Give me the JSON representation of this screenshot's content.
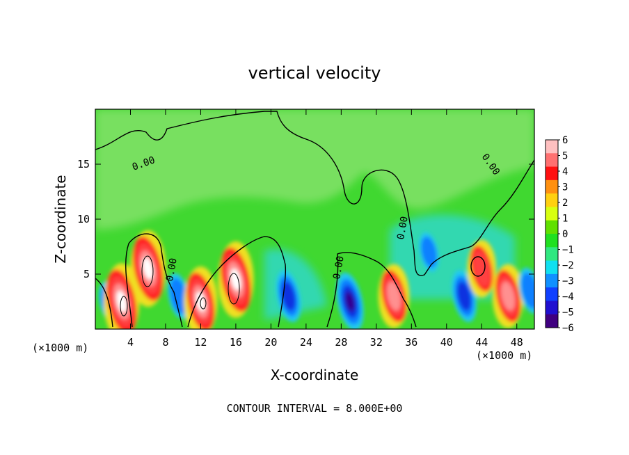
{
  "chart_data": {
    "type": "heatmap",
    "title": "vertical velocity",
    "xlabel": "X-coordinate",
    "ylabel": "Z-coordinate",
    "x_unit": "(×1000 m)",
    "xlim": [
      0,
      50
    ],
    "ylim": [
      0,
      20
    ],
    "x_ticks": [
      "4",
      "8",
      "12",
      "16",
      "20",
      "24",
      "28",
      "32",
      "36",
      "40",
      "44",
      "48"
    ],
    "y_ticks": [
      "5",
      "10",
      "15"
    ],
    "contour_interval_text": "CONTOUR INTERVAL = 8.000E+00",
    "contour_labels": [
      "0.00",
      "0.00",
      "0.00",
      "0.00",
      "0.00"
    ],
    "colorbar": {
      "levels": [
        "6",
        "5",
        "4",
        "3",
        "2",
        "1",
        "0",
        "−1",
        "−2",
        "−3",
        "−4",
        "−5",
        "−6"
      ],
      "colors": [
        "#ffc0c0",
        "#ff7070",
        "#ff1010",
        "#ff9010",
        "#ffd010",
        "#d8ff10",
        "#60e000",
        "#20e020",
        "#30e880",
        "#10e0f0",
        "#1090ff",
        "#1040ff",
        "#2010d0",
        "#400080"
      ]
    },
    "features": [
      {
        "x": 1.5,
        "z": 2.5,
        "w": -2
      },
      {
        "x": 3,
        "z": 2.5,
        "w": 6
      },
      {
        "x": 6,
        "z": 5.5,
        "w": 6
      },
      {
        "x": 9.5,
        "z": 3,
        "w": -3
      },
      {
        "x": 12,
        "z": 2.5,
        "w": 5
      },
      {
        "x": 16,
        "z": 4.5,
        "w": 6
      },
      {
        "x": 22,
        "z": 3,
        "w": -4
      },
      {
        "x": 29,
        "z": 2.5,
        "w": -5
      },
      {
        "x": 34,
        "z": 3,
        "w": 4
      },
      {
        "x": 38,
        "z": 7,
        "w": -2
      },
      {
        "x": 42,
        "z": 3,
        "w": -4
      },
      {
        "x": 44,
        "z": 5.5,
        "w": 3
      },
      {
        "x": 47,
        "z": 3,
        "w": 4
      },
      {
        "x": 49.5,
        "z": 3.5,
        "w": -3
      }
    ]
  }
}
